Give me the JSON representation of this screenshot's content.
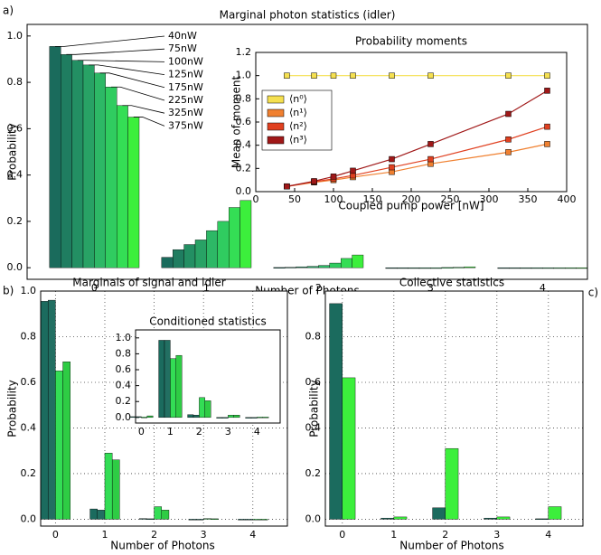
{
  "chart_data": [
    {
      "type": "bar",
      "panel_label": "a)",
      "title": "Marginal photon statistics (idler)",
      "xlabel": "Number of Photons",
      "ylabel": "Probability",
      "categories": [
        "0",
        "1",
        "2",
        "3",
        "4"
      ],
      "series": [
        {
          "name": "40nW",
          "color": "#1a6b5c",
          "values": [
            0.955,
            0.045,
            0.001,
            0,
            0
          ]
        },
        {
          "name": "75nW",
          "color": "#1f7d60",
          "values": [
            0.92,
            0.078,
            0.002,
            0,
            0
          ]
        },
        {
          "name": "100nW",
          "color": "#238f63",
          "values": [
            0.895,
            0.1,
            0.004,
            0,
            0
          ]
        },
        {
          "name": "125nW",
          "color": "#28a265",
          "values": [
            0.875,
            0.12,
            0.006,
            0,
            0
          ]
        },
        {
          "name": "175nW",
          "color": "#2db866",
          "values": [
            0.84,
            0.16,
            0.01,
            0,
            0
          ]
        },
        {
          "name": "225nW",
          "color": "#30cc60",
          "values": [
            0.78,
            0.2,
            0.02,
            0.001,
            0
          ]
        },
        {
          "name": "325nW",
          "color": "#34de55",
          "values": [
            0.7,
            0.26,
            0.04,
            0.002,
            0
          ]
        },
        {
          "name": "375nW",
          "color": "#3cef3c",
          "values": [
            0.65,
            0.29,
            0.055,
            0.004,
            0
          ]
        }
      ],
      "ylim": [
        -0.05,
        1.05
      ],
      "yticks": [
        {
          "value": 0,
          "label": "0.0"
        },
        0.2,
        0.4,
        0.6,
        0.8,
        {
          "value": 1,
          "label": "1.0"
        }
      ],
      "grid": false
    },
    {
      "type": "line",
      "title": "Probability moments",
      "xlabel": "Coupled pump power [nW]",
      "ylabel": "Mean of moment",
      "x": [
        40,
        75,
        100,
        125,
        175,
        225,
        325,
        375
      ],
      "series": [
        {
          "name": "⟨n⁰⟩",
          "color": "#f5e050",
          "values": [
            1,
            1,
            1,
            1,
            1,
            1,
            1,
            1
          ]
        },
        {
          "name": "⟨n¹⟩",
          "color": "#f08030",
          "values": [
            0.045,
            0.08,
            0.1,
            0.125,
            0.17,
            0.24,
            0.34,
            0.41
          ]
        },
        {
          "name": "⟨n²⟩",
          "color": "#e04020",
          "values": [
            0.045,
            0.085,
            0.11,
            0.14,
            0.21,
            0.28,
            0.45,
            0.56
          ]
        },
        {
          "name": "⟨n³⟩",
          "color": "#a01818",
          "values": [
            0.045,
            0.09,
            0.13,
            0.18,
            0.28,
            0.41,
            0.67,
            0.87
          ]
        }
      ],
      "xlim": [
        0,
        400
      ],
      "xticks": [
        0,
        50,
        100,
        150,
        200,
        250,
        300,
        350,
        400
      ],
      "ylim": [
        0,
        1.2
      ],
      "yticks": [
        {
          "value": 0,
          "label": "0.0"
        },
        0.2,
        0.4,
        0.6,
        0.8,
        {
          "value": 1,
          "label": "1.0"
        },
        1.2
      ],
      "grid": false
    },
    {
      "type": "bar",
      "panel_label": "b)",
      "title": "Marginals of signal and idler",
      "xlabel": "Number of Photons",
      "ylabel": "Probability",
      "categories": [
        "0",
        "1",
        "2",
        "3",
        "4"
      ],
      "series": [
        {
          "color": "#1b6b5e",
          "values": [
            0.955,
            0.045,
            0.003,
            0,
            0
          ]
        },
        {
          "color": "#226f62",
          "values": [
            0.96,
            0.04,
            0.002,
            0,
            0
          ]
        },
        {
          "color": "#33dd55",
          "values": [
            0.65,
            0.29,
            0.055,
            0.003,
            0
          ]
        },
        {
          "color": "#2ecc44",
          "values": [
            0.69,
            0.26,
            0.04,
            0.002,
            0
          ]
        }
      ],
      "ylim": [
        -0.03,
        1.0
      ],
      "yticks": [
        {
          "value": 0,
          "label": "0.0"
        },
        0.2,
        0.4,
        0.6,
        0.8,
        {
          "value": 1,
          "label": "1.0"
        }
      ],
      "grid": true
    },
    {
      "type": "bar",
      "title": "Conditioned statistics",
      "categories": [
        "0",
        "1",
        "2",
        "3",
        "4"
      ],
      "series": [
        {
          "color": "#1b6b5e",
          "values": [
            0.01,
            0.97,
            0.035,
            0,
            0
          ]
        },
        {
          "color": "#226f62",
          "values": [
            0.01,
            0.97,
            0.03,
            0,
            0
          ]
        },
        {
          "color": "#33dd55",
          "values": [
            0.005,
            0.74,
            0.25,
            0.03,
            0.005
          ]
        },
        {
          "color": "#2ecc44",
          "values": [
            0.02,
            0.78,
            0.21,
            0.03,
            0.005
          ]
        }
      ],
      "ylim": [
        -0.07,
        1.1
      ],
      "yticks": [
        {
          "value": 0,
          "label": "0.0"
        },
        0.2,
        0.4,
        0.6,
        0.8,
        {
          "value": 1,
          "label": "1.0"
        }
      ],
      "grid": false
    },
    {
      "type": "bar",
      "panel_label": "c)",
      "title": "Collective statistics",
      "xlabel": "Number of Photons",
      "ylabel": "Probability",
      "categories": [
        "0",
        "1",
        "2",
        "3",
        "4"
      ],
      "series": [
        {
          "color": "#1b6b5e",
          "values": [
            0.945,
            0.005,
            0.05,
            0.005,
            0.002
          ]
        },
        {
          "color": "#3cef3c",
          "values": [
            0.62,
            0.01,
            0.31,
            0.01,
            0.055
          ]
        }
      ],
      "ylim": [
        -0.03,
        1.0
      ],
      "yticks": [
        {
          "value": 0,
          "label": "0.0"
        },
        0.2,
        0.4,
        0.6,
        0.8
      ],
      "grid": true
    }
  ]
}
